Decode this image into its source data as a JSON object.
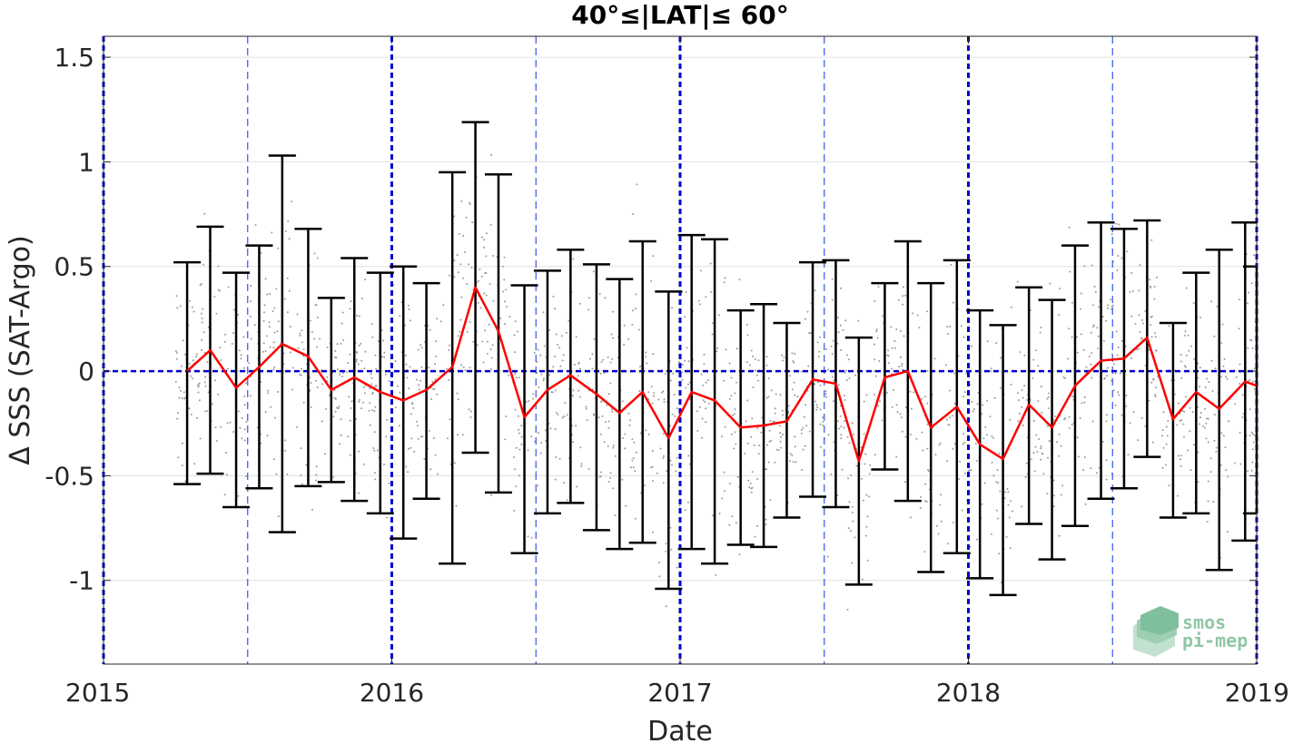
{
  "chart_data": {
    "type": "line",
    "title": "40°≤|LAT|≤ 60°",
    "xlabel": "Date",
    "ylabel": "Δ SSS (SAT-Argo)",
    "xlim": [
      2015.0,
      2019.0
    ],
    "ylim": [
      -1.4,
      1.6
    ],
    "x_ticks": [
      2015,
      2016,
      2017,
      2018,
      2019
    ],
    "x_tick_labels": [
      "2015",
      "2016",
      "2017",
      "2018",
      "2019"
    ],
    "y_ticks": [
      -1,
      -0.5,
      0,
      0.5,
      1,
      1.5
    ],
    "y_tick_labels": [
      "-1",
      "-0.5",
      "0",
      "0.5",
      "1",
      "1.5"
    ],
    "grid": "horizontal",
    "reference_line_y": 0,
    "year_lines": [
      2015,
      2016,
      2017,
      2018,
      2019
    ],
    "half_year_lines": [
      2015.5,
      2016.5,
      2017.5,
      2018.5
    ],
    "colors": {
      "mean_line": "#ff0000",
      "error_bars": "#000000",
      "reference": "#0000cc",
      "scatter": "#9a9a9a",
      "grid": "#e0e0e0"
    },
    "series": [
      {
        "x": [
          2015.29,
          2015.37,
          2015.46,
          2015.54,
          2015.62,
          2015.71,
          2015.79,
          2015.87,
          2015.96,
          2016.04,
          2016.12,
          2016.21,
          2016.29,
          2016.37,
          2016.46,
          2016.54,
          2016.62,
          2016.71,
          2016.79,
          2016.87,
          2016.96,
          2017.04,
          2017.12,
          2017.21,
          2017.29,
          2017.37,
          2017.46,
          2017.54,
          2017.62,
          2017.71,
          2017.79,
          2017.87,
          2017.96,
          2018.04,
          2018.12,
          2018.21,
          2018.29,
          2018.37,
          2018.46,
          2018.54,
          2018.62,
          2018.71,
          2018.79,
          2018.87,
          2018.96,
          2019.0
        ],
        "mean": [
          0.0,
          0.1,
          -0.08,
          0.02,
          0.13,
          0.07,
          -0.09,
          -0.03,
          -0.1,
          -0.14,
          -0.09,
          0.02,
          0.4,
          0.19,
          -0.22,
          -0.09,
          -0.02,
          -0.11,
          -0.2,
          -0.1,
          -0.32,
          -0.1,
          -0.14,
          -0.27,
          -0.26,
          -0.24,
          -0.04,
          -0.06,
          -0.43,
          -0.03,
          0.0,
          -0.27,
          -0.17,
          -0.35,
          -0.42,
          -0.16,
          -0.27,
          -0.07,
          0.05,
          0.06,
          0.16,
          -0.23,
          -0.1,
          -0.18,
          -0.05,
          -0.07
        ],
        "upper": [
          0.52,
          0.69,
          0.47,
          0.6,
          1.03,
          0.68,
          0.35,
          0.54,
          0.47,
          0.5,
          0.42,
          0.95,
          1.19,
          0.94,
          0.41,
          0.48,
          0.58,
          0.51,
          0.44,
          0.62,
          0.38,
          0.65,
          0.63,
          0.29,
          0.32,
          0.23,
          0.52,
          0.53,
          0.16,
          0.42,
          0.62,
          0.42,
          0.53,
          0.29,
          0.22,
          0.4,
          0.34,
          0.6,
          0.71,
          0.68,
          0.72,
          0.23,
          0.47,
          0.58,
          0.71,
          0.5
        ],
        "lower": [
          -0.54,
          -0.49,
          -0.65,
          -0.56,
          -0.77,
          -0.55,
          -0.53,
          -0.62,
          -0.68,
          -0.8,
          -0.61,
          -0.92,
          -0.39,
          -0.58,
          -0.87,
          -0.68,
          -0.63,
          -0.76,
          -0.85,
          -0.82,
          -1.04,
          -0.85,
          -0.92,
          -0.83,
          -0.84,
          -0.7,
          -0.6,
          -0.65,
          -1.02,
          -0.47,
          -0.62,
          -0.96,
          -0.87,
          -0.99,
          -1.07,
          -0.73,
          -0.9,
          -0.74,
          -0.61,
          -0.56,
          -0.41,
          -0.7,
          -0.68,
          -0.95,
          -0.81,
          -0.68
        ]
      }
    ]
  },
  "logo": {
    "line1": "smos",
    "line2": "pi-mep"
  }
}
